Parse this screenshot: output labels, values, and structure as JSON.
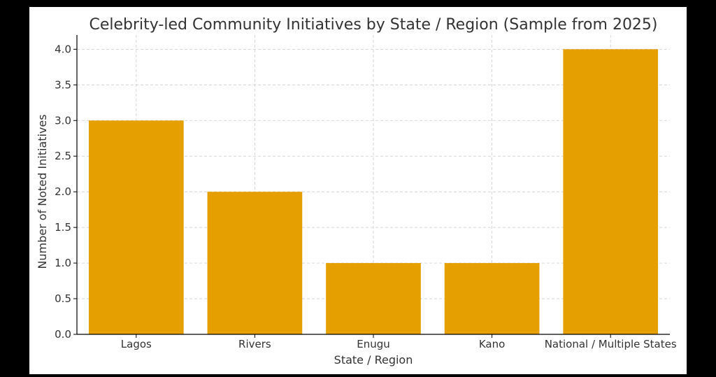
{
  "chart_data": {
    "type": "bar",
    "title": "Celebrity-led Community Initiatives by State / Region (Sample from 2025)",
    "xlabel": "State / Region",
    "ylabel": "Number of Noted Initiatives",
    "categories": [
      "Lagos",
      "Rivers",
      "Enugu",
      "Kano",
      "National / Multiple States"
    ],
    "values": [
      3,
      2,
      1,
      1,
      4
    ],
    "ylim": [
      0,
      4.2
    ],
    "yticks": [
      "0.0",
      "0.5",
      "1.0",
      "1.5",
      "2.0",
      "2.5",
      "3.0",
      "3.5",
      "4.0"
    ],
    "grid": true,
    "bar_color": "#E5A000"
  }
}
